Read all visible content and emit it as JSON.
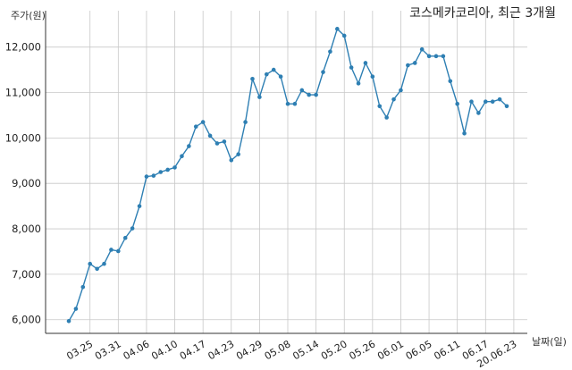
{
  "chart_data": {
    "type": "line",
    "title": "코스메카코리아, 최근 3개월",
    "xlabel": "날짜(일)",
    "ylabel": "주가(원)",
    "ylim": [
      5700,
      12800
    ],
    "grid": true,
    "yticks": [
      6000,
      7000,
      8000,
      9000,
      10000,
      11000,
      12000
    ],
    "ytick_labels": [
      "6,000",
      "7,000",
      "8,000",
      "9,000",
      "10,000",
      "11,000",
      "12,000"
    ],
    "xtick_labels": [
      "03.25",
      "03.31",
      "04.06",
      "04.10",
      "04.17",
      "04.23",
      "04.29",
      "05.08",
      "05.14",
      "05.20",
      "05.26",
      "06.01",
      "06.05",
      "06.11",
      "06.17",
      "20.06.23"
    ],
    "xtick_index": [
      3,
      7,
      11,
      15,
      19,
      23,
      27,
      31,
      35,
      39,
      43,
      47,
      51,
      55,
      59,
      63
    ],
    "color": "#2e7fb3",
    "series": [
      {
        "values": [
          5970,
          6240,
          6720,
          7230,
          7120,
          7230,
          7540,
          7510,
          7800,
          8010,
          8500,
          9150,
          9170,
          9250,
          9300,
          9350,
          9600,
          9820,
          10250,
          10350,
          10050,
          9880,
          9920,
          9510,
          9640,
          10350,
          11300,
          10900,
          11400,
          11500,
          11350,
          10750,
          10750,
          11050,
          10950,
          10950,
          11450,
          11900,
          12400,
          12250,
          11550,
          11200,
          11650,
          11350,
          10700,
          10450,
          10850,
          11050,
          11600,
          11650,
          11950,
          11800,
          11800,
          11800,
          11250,
          10750,
          10100,
          10800,
          10550,
          10800,
          10800,
          10850,
          10700
        ]
      }
    ]
  }
}
